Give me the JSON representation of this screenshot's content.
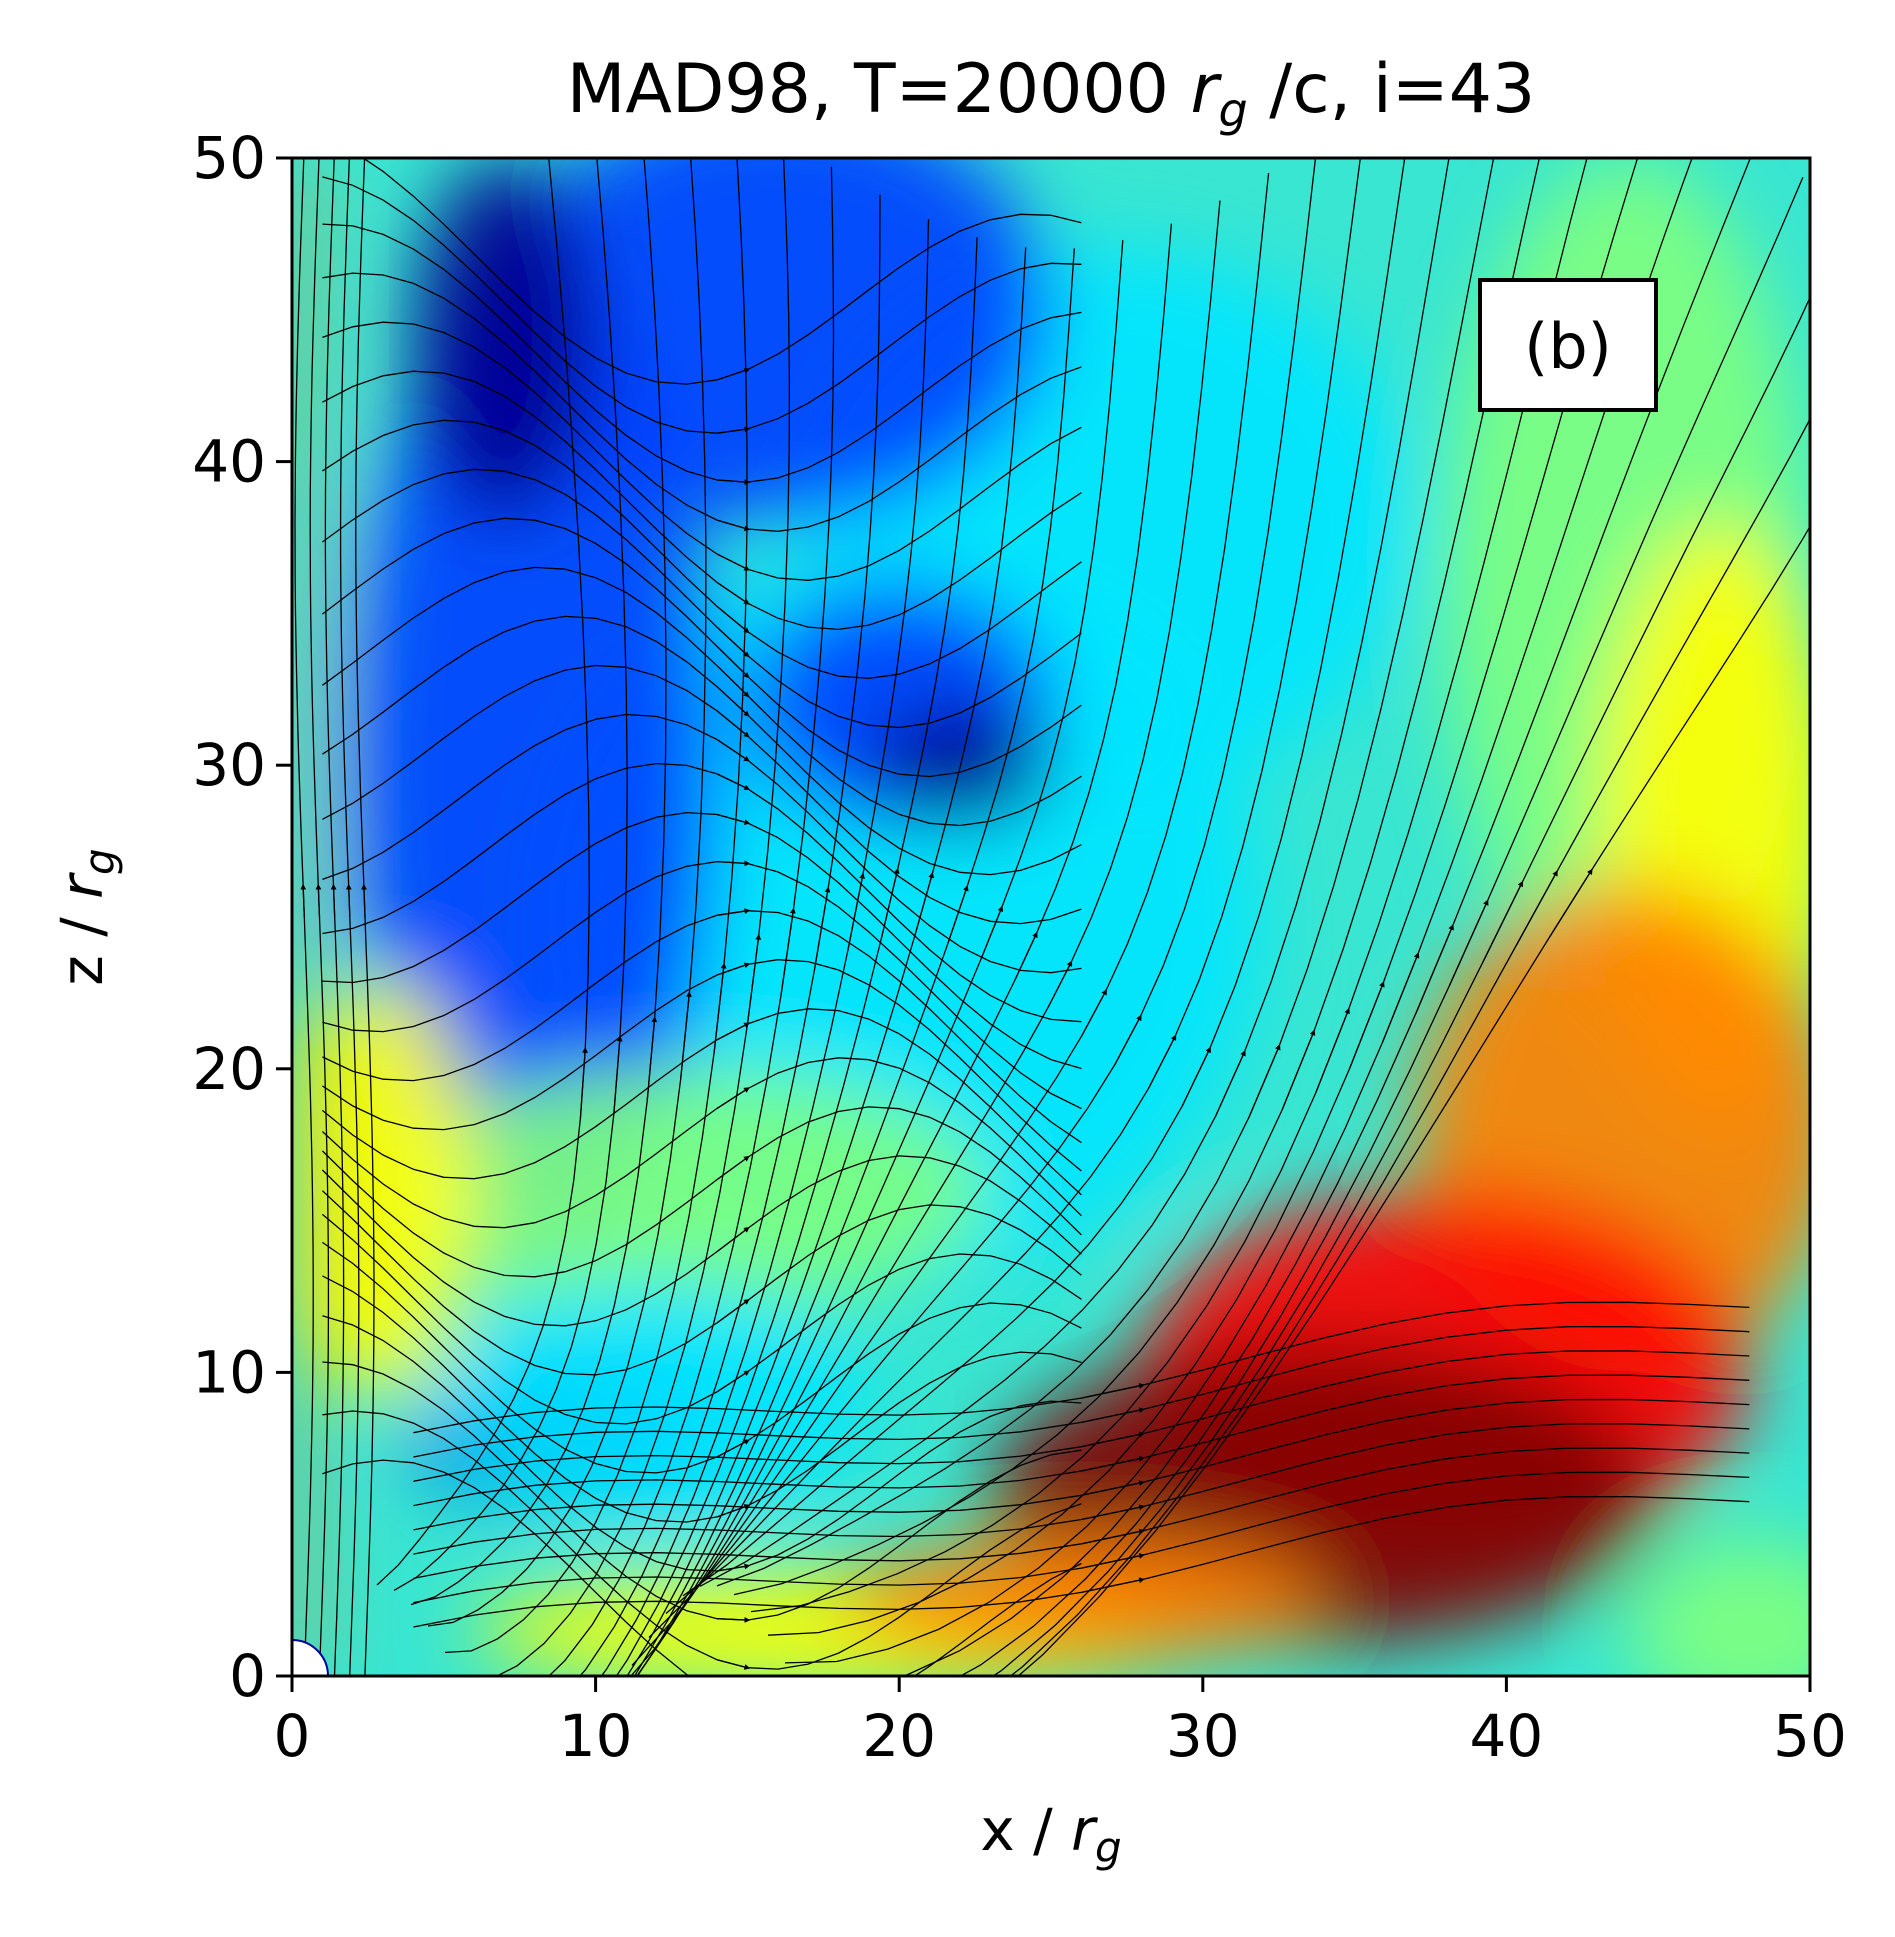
{
  "chart_data": {
    "type": "heatmap",
    "title_main": "MAD98, T=20000 ",
    "title_sym": "r",
    "title_sub": "g",
    "title_tail": " /c, i=43",
    "xlabel_main": "x / ",
    "xlabel_sym": "r",
    "xlabel_sub": "g",
    "ylabel_main": "z / ",
    "ylabel_sym": "r",
    "ylabel_sub": "g",
    "panel_label": "(b)",
    "xlim": [
      0,
      50
    ],
    "ylim": [
      0,
      50
    ],
    "xticks": [
      0,
      10,
      20,
      30,
      40,
      50
    ],
    "yticks": [
      0,
      10,
      20,
      30,
      40,
      50
    ],
    "xtick_labels": [
      "0",
      "10",
      "20",
      "30",
      "40",
      "50"
    ],
    "ytick_labels": [
      "0",
      "10",
      "20",
      "30",
      "40",
      "50"
    ],
    "colormap": "jet",
    "grid": false,
    "overlay": "black streamlines with arrowheads",
    "colors": {
      "dark_blue": "#00008f",
      "blue": "#0040ff",
      "cyan": "#00e5ff",
      "green": "#7fff7f",
      "yellow": "#ffff00",
      "orange": "#ff8000",
      "red": "#ff0000",
      "dark_red": "#800000"
    }
  }
}
